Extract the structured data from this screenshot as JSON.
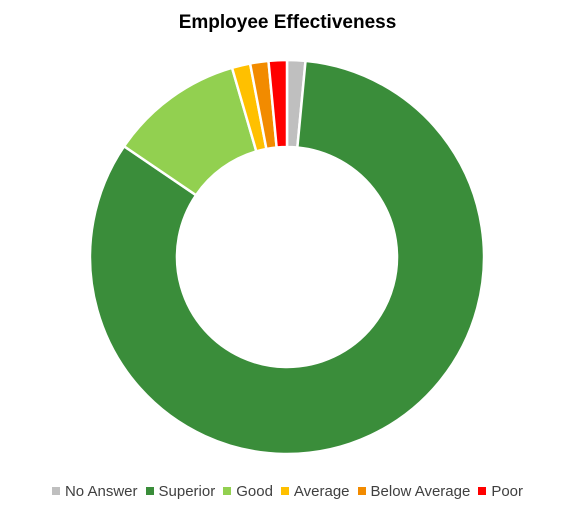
{
  "chart_data": {
    "type": "donut",
    "title": "Employee Effectiveness",
    "categories": [
      "No Answer",
      "Superior",
      "Good",
      "Average",
      "Below Average",
      "Poor"
    ],
    "values": [
      1.5,
      83,
      11,
      1.5,
      1.5,
      1.5
    ],
    "colors": [
      "#bfbfbf",
      "#3a8d3a",
      "#92d050",
      "#ffc000",
      "#f28b00",
      "#ff0000"
    ],
    "legend_position": "bottom",
    "start_angle_deg": 0,
    "direction": "clockwise"
  }
}
